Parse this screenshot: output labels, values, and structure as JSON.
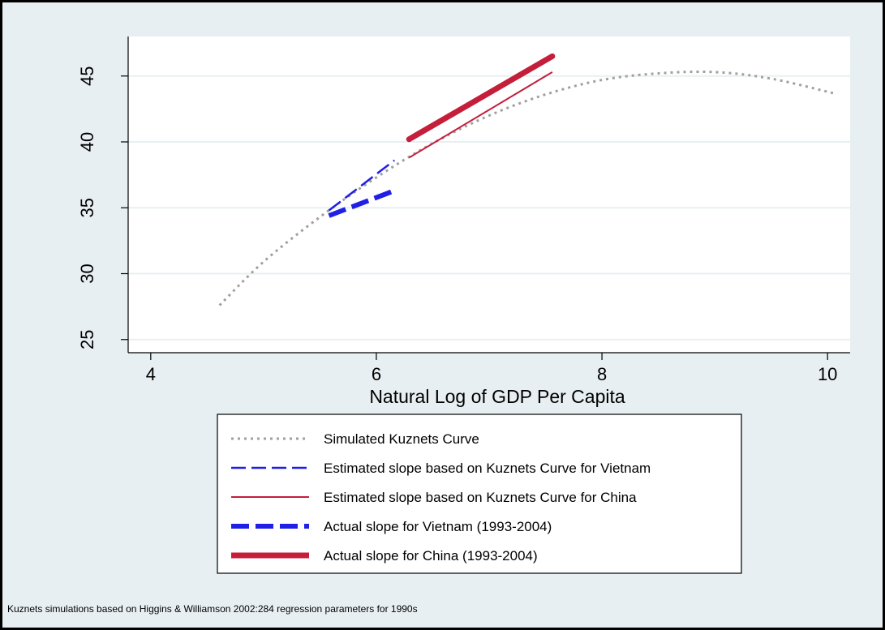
{
  "chart_data": {
    "type": "line",
    "xlabel": "Natural Log of GDP Per Capita",
    "ylabel": "",
    "xlim": [
      3.8,
      10.2
    ],
    "ylim": [
      24,
      48
    ],
    "xticks": [
      4,
      6,
      8,
      10
    ],
    "yticks": [
      25,
      30,
      35,
      40,
      45
    ],
    "grid": "horizontal",
    "legend_position": "bottom",
    "note": "Kuznets simulations based on Higgins & Williamson 2002:284 regression parameters for 1990s",
    "series": [
      {
        "name": "Simulated Kuznets Curve",
        "color": "#a0a0a0",
        "style": "dotted",
        "x": [
          4.61,
          5.0,
          5.5,
          6.0,
          6.5,
          7.0,
          7.5,
          8.0,
          8.5,
          9.0,
          9.5,
          10.05
        ],
        "y": [
          27.6,
          30.9,
          34.3,
          37.3,
          39.9,
          42.0,
          43.6,
          44.7,
          45.2,
          45.3,
          44.8,
          43.7
        ]
      },
      {
        "name": "Estimated slope based on Kuznets Curve for Vietnam",
        "color": "#1f1fe6",
        "style": "longdash",
        "x": [
          5.58,
          6.16
        ],
        "y": [
          34.8,
          38.6
        ]
      },
      {
        "name": "Estimated slope based on Kuznets Curve for China",
        "color": "#c41e3a",
        "style": "solid-thin",
        "x": [
          6.29,
          7.56
        ],
        "y": [
          38.8,
          45.3
        ]
      },
      {
        "name": "Actual slope for Vietnam (1993-2004)",
        "color": "#1f1fe6",
        "style": "thick-dash",
        "x": [
          5.58,
          6.16
        ],
        "y": [
          34.4,
          36.3
        ]
      },
      {
        "name": "Actual slope for China (1993-2004)",
        "color": "#c41e3a",
        "style": "solid-thick",
        "x": [
          6.29,
          7.56
        ],
        "y": [
          40.2,
          46.5
        ]
      }
    ]
  }
}
